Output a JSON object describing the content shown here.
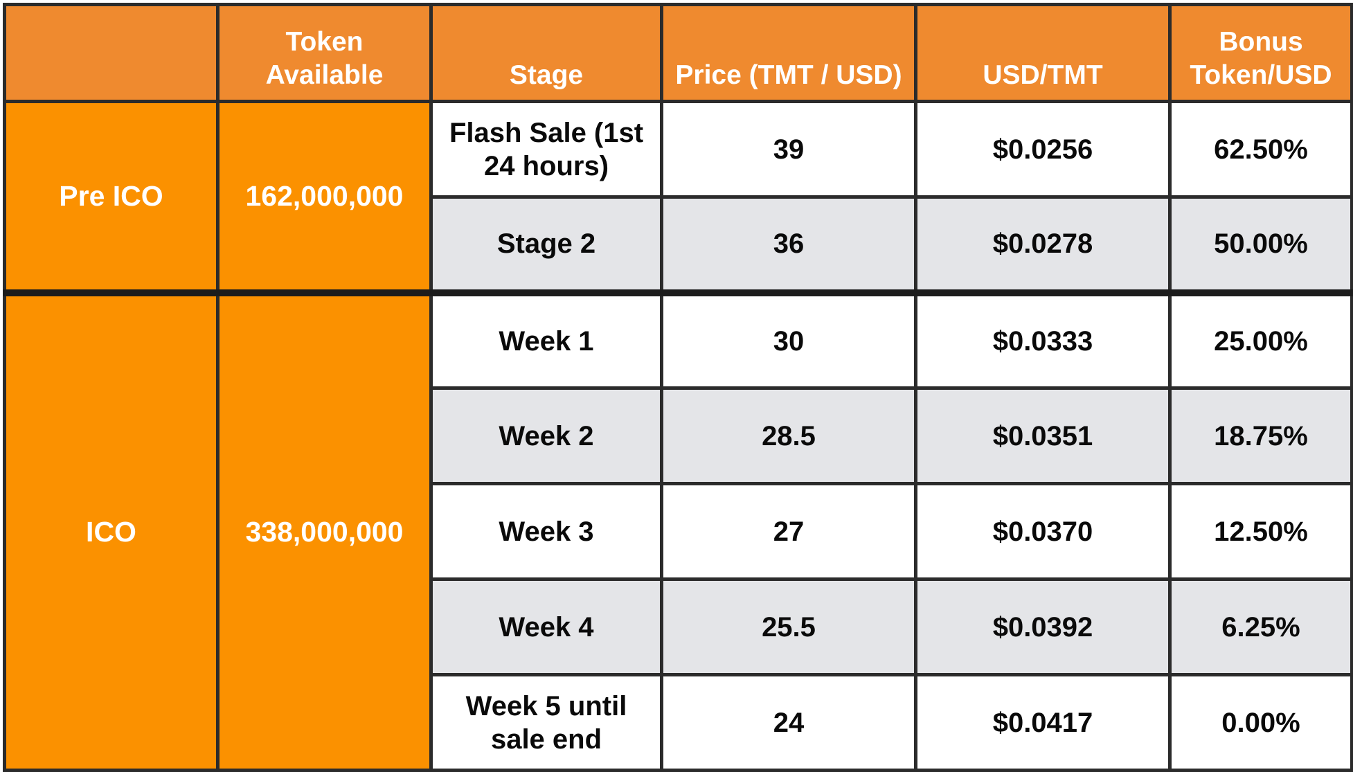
{
  "headers": {
    "phase": "",
    "token_available": "Token Available",
    "stage": "Stage",
    "price": "Price (TMT / USD)",
    "usd_tmt": "USD/TMT",
    "bonus": "Bonus Token/USD"
  },
  "phases": [
    {
      "name": "Pre ICO",
      "tokens": "162,000,000",
      "rows": [
        {
          "stage": "Flash Sale (1st 24 hours)",
          "price": "39",
          "usd": "$0.0256",
          "bonus": "62.50%"
        },
        {
          "stage": "Stage 2",
          "price": "36",
          "usd": "$0.0278",
          "bonus": "50.00%"
        }
      ]
    },
    {
      "name": "ICO",
      "tokens": "338,000,000",
      "rows": [
        {
          "stage": "Week 1",
          "price": "30",
          "usd": "$0.0333",
          "bonus": "25.00%"
        },
        {
          "stage": "Week 2",
          "price": "28.5",
          "usd": "$0.0351",
          "bonus": "18.75%"
        },
        {
          "stage": "Week 3",
          "price": "27",
          "usd": "$0.0370",
          "bonus": "12.50%"
        },
        {
          "stage": "Week 4",
          "price": "25.5",
          "usd": "$0.0392",
          "bonus": "6.25%"
        },
        {
          "stage": "Week 5 until sale end",
          "price": "24",
          "usd": "$0.0417",
          "bonus": "0.00%"
        }
      ]
    }
  ],
  "colors": {
    "header_bg": "#ef8a2f",
    "phase_bg": "#fb9100",
    "row_alt_bg": "#e4e5e8",
    "border": "#2b2b2b"
  }
}
